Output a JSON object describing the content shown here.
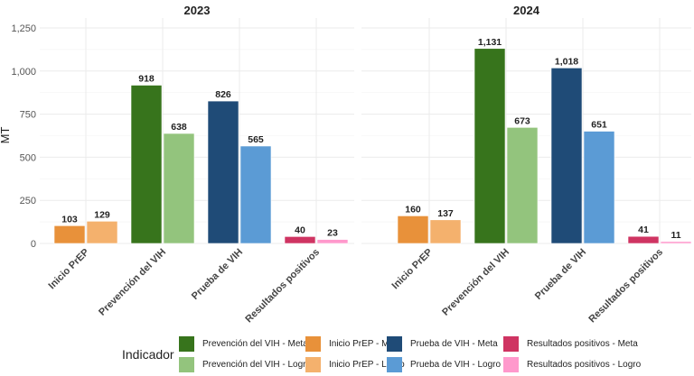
{
  "chart_data": {
    "type": "bar",
    "ylabel": "MT",
    "ylim": [
      0,
      1250
    ],
    "yticks": [
      0,
      250,
      500,
      750,
      1000,
      1250
    ],
    "ytick_labels": [
      "0",
      "250",
      "500",
      "750",
      "1,000",
      "1,250"
    ],
    "grid": true,
    "categories": [
      "Inicio PrEP",
      "Prevención del VIH",
      "Prueba de VIH",
      "Resultados positivos"
    ],
    "panels": [
      {
        "title": "2023",
        "meta": [
          103,
          918,
          826,
          40
        ],
        "logro": [
          129,
          638,
          565,
          23
        ],
        "meta_labels": [
          "103",
          "918",
          "826",
          "40"
        ],
        "logro_labels": [
          "129",
          "638",
          "565",
          "23"
        ]
      },
      {
        "title": "2024",
        "meta": [
          160,
          1131,
          1018,
          41
        ],
        "logro": [
          137,
          673,
          651,
          11
        ],
        "meta_labels": [
          "160",
          "1,131",
          "1,018",
          "41"
        ],
        "logro_labels": [
          "137",
          "673",
          "651",
          "11"
        ]
      }
    ],
    "colors": {
      "meta": [
        "#E8913A",
        "#37741C",
        "#1F4B77",
        "#CF3462"
      ],
      "logro": [
        "#F4B16D",
        "#93C47D",
        "#5B9BD5",
        "#FF99CC"
      ]
    },
    "legend": {
      "title": "Indicador",
      "placement": "bottom",
      "items": [
        {
          "label": "Prevención del VIH - Meta",
          "color": "#37741C"
        },
        {
          "label": "Prevención del VIH - Logro",
          "color": "#93C47D"
        },
        {
          "label": "Inicio PrEP - Meta",
          "color": "#E8913A"
        },
        {
          "label": "Inicio PrEP - Logro",
          "color": "#F4B16D"
        },
        {
          "label": "Prueba de VIH - Meta",
          "color": "#1F4B77"
        },
        {
          "label": "Prueba de VIH - Logro",
          "color": "#5B9BD5"
        },
        {
          "label": "Resultados positivos - Meta",
          "color": "#CF3462"
        },
        {
          "label": "Resultados positivos - Logro",
          "color": "#FF99CC"
        }
      ]
    }
  }
}
